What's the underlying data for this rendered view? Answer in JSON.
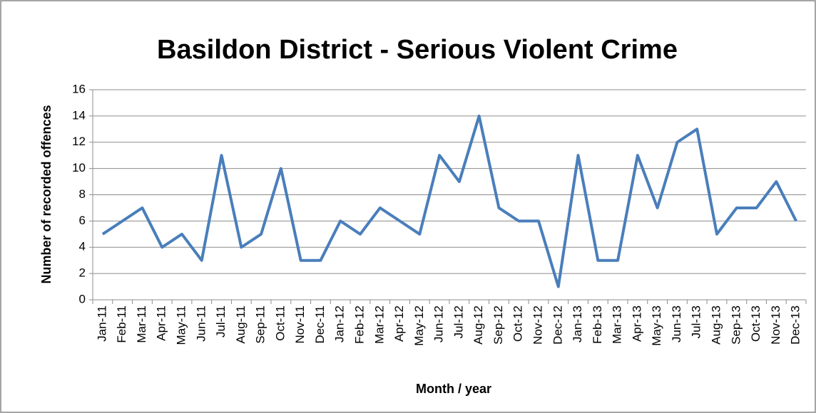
{
  "chart_data": {
    "type": "line",
    "title": "Basildon District - Serious Violent Crime",
    "x_label": "Month / year",
    "y_label": "Number of recorded offences",
    "categories": [
      "Jan-11",
      "Feb-11",
      "Mar-11",
      "Apr-11",
      "May-11",
      "Jun-11",
      "Jul-11",
      "Aug-11",
      "Sep-11",
      "Oct-11",
      "Nov-11",
      "Dec-11",
      "Jan-12",
      "Feb-12",
      "Mar-12",
      "Apr-12",
      "May-12",
      "Jun-12",
      "Jul-12",
      "Aug-12",
      "Sep-12",
      "Oct-12",
      "Nov-12",
      "Dec-12",
      "Jan-13",
      "Feb-13",
      "Mar-13",
      "Apr-13",
      "May-13",
      "Jun-13",
      "Jul-13",
      "Aug-13",
      "Sep-13",
      "Oct-13",
      "Nov-13",
      "Dec-13"
    ],
    "values": [
      5,
      6,
      7,
      4,
      5,
      3,
      11,
      4,
      5,
      10,
      3,
      3,
      6,
      5,
      7,
      6,
      5,
      11,
      9,
      14,
      7,
      6,
      6,
      1,
      11,
      3,
      3,
      11,
      7,
      12,
      13,
      5,
      7,
      7,
      9,
      6
    ],
    "color": "#4a7ebb",
    "ylim": [
      0,
      16
    ],
    "yticks": [
      0,
      2,
      4,
      6,
      8,
      10,
      12,
      14,
      16
    ],
    "grid": true
  }
}
